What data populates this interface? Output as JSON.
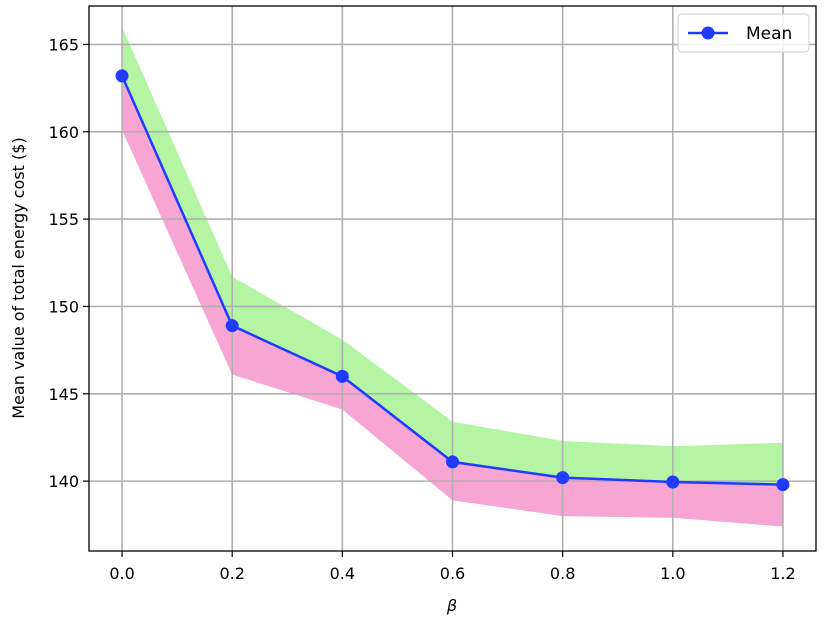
{
  "chart_data": {
    "type": "line",
    "xlabel": "β",
    "ylabel": "Mean value of total energy cost ($)",
    "xlim": [
      -0.06,
      1.26
    ],
    "ylim": [
      136.0,
      167.2
    ],
    "grid": true,
    "legend_position": "top-right",
    "x": [
      0.0,
      0.2,
      0.4,
      0.6,
      0.8,
      1.0,
      1.2
    ],
    "x_ticks": [
      "0.0",
      "0.2",
      "0.4",
      "0.6",
      "0.8",
      "1.0",
      "1.2"
    ],
    "y_ticks": [
      "140",
      "145",
      "150",
      "155",
      "160",
      "165"
    ],
    "series": [
      {
        "name": "Mean",
        "color": "#1f3bff",
        "values": [
          163.2,
          148.9,
          146.0,
          141.1,
          140.2,
          139.95,
          139.8
        ]
      }
    ],
    "bands": [
      {
        "color": "#b3f5a3",
        "lower": [
          163.2,
          148.9,
          146.0,
          141.1,
          140.2,
          139.95,
          139.8
        ],
        "upper": [
          166.0,
          151.7,
          148.1,
          143.4,
          142.3,
          142.0,
          142.2
        ]
      },
      {
        "color": "#f7a6d3",
        "lower": [
          160.1,
          146.1,
          144.1,
          138.9,
          138.0,
          137.9,
          137.4
        ],
        "upper": [
          163.2,
          148.9,
          146.0,
          141.1,
          140.2,
          139.95,
          139.8
        ]
      }
    ]
  }
}
